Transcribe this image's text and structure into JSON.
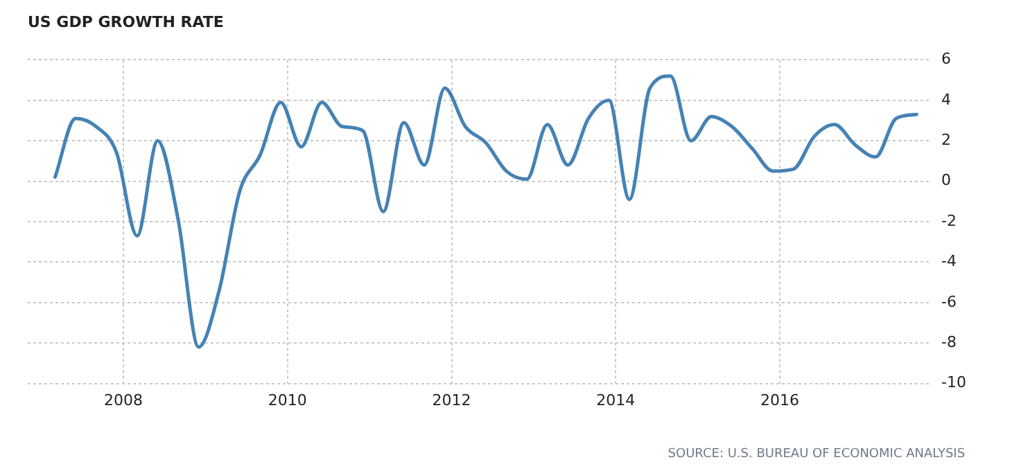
{
  "chart_data": {
    "type": "line",
    "title": "US GDP GROWTH RATE",
    "x": [
      "2007-03",
      "2007-06",
      "2007-09",
      "2007-12",
      "2008-03",
      "2008-06",
      "2008-09",
      "2008-12",
      "2009-03",
      "2009-06",
      "2009-09",
      "2009-12",
      "2010-03",
      "2010-06",
      "2010-09",
      "2010-12",
      "2011-03",
      "2011-06",
      "2011-09",
      "2011-12",
      "2012-03",
      "2012-06",
      "2012-09",
      "2012-12",
      "2013-03",
      "2013-06",
      "2013-09",
      "2013-12",
      "2014-03",
      "2014-06",
      "2014-09",
      "2014-12",
      "2015-03",
      "2015-06",
      "2015-09",
      "2015-12",
      "2016-03",
      "2016-06",
      "2016-09",
      "2016-12",
      "2017-03",
      "2017-06",
      "2017-09"
    ],
    "series": [
      {
        "color": "#4682b4",
        "values": [
          0.2,
          3.1,
          2.7,
          1.4,
          -2.7,
          2.0,
          -1.9,
          -8.2,
          -5.4,
          -0.5,
          1.3,
          3.9,
          1.7,
          3.9,
          2.7,
          2.5,
          -1.5,
          2.9,
          0.8,
          4.6,
          2.7,
          1.9,
          0.5,
          0.1,
          2.8,
          0.8,
          3.1,
          4.0,
          -0.9,
          4.6,
          5.2,
          2.0,
          3.2,
          2.7,
          1.6,
          0.5,
          0.6,
          2.2,
          2.8,
          1.8,
          1.2,
          3.1,
          3.3
        ]
      }
    ],
    "xlim": [
      "2006-11",
      "2017-11"
    ],
    "xticks": [
      "2008",
      "2010",
      "2012",
      "2014",
      "2016"
    ],
    "ylim": [
      -10,
      6
    ],
    "yticks": [
      -10,
      -8,
      -6,
      -4,
      -2,
      0,
      2,
      4,
      6
    ],
    "grid": true,
    "legend": false,
    "marker": "none",
    "line_style": "solid",
    "annotations": [
      "SOURCE: U.S. BUREAU OF ECONOMIC ANALYSIS"
    ]
  }
}
